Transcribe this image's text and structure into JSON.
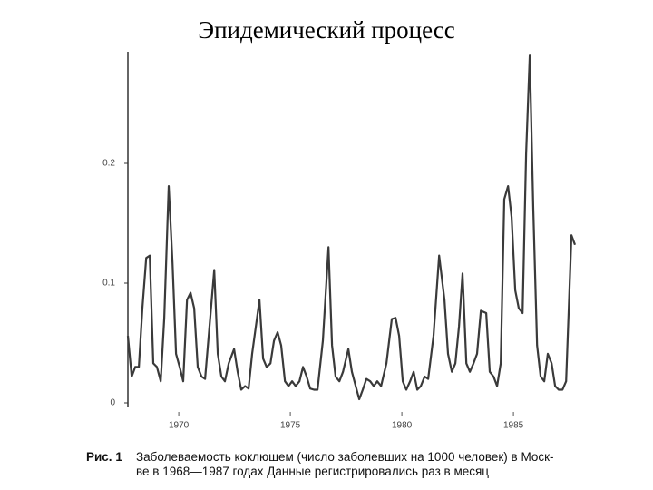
{
  "title": "Эпидемический процесс",
  "chart_data": {
    "type": "line",
    "color": "#3a3a3a",
    "x": [
      1967.72,
      1967.89,
      1968.05,
      1968.21,
      1968.37,
      1968.54,
      1968.7,
      1968.86,
      1969.02,
      1969.19,
      1969.35,
      1969.55,
      1969.72,
      1969.88,
      1970.04,
      1970.2,
      1970.37,
      1970.53,
      1970.69,
      1970.85,
      1971.02,
      1971.18,
      1971.34,
      1971.59,
      1971.75,
      1971.91,
      1972.07,
      1972.24,
      1972.48,
      1972.64,
      1972.8,
      1972.97,
      1973.13,
      1973.29,
      1973.62,
      1973.78,
      1973.94,
      1974.11,
      1974.27,
      1974.43,
      1974.59,
      1974.76,
      1974.92,
      1975.08,
      1975.24,
      1975.41,
      1975.57,
      1975.73,
      1975.89,
      1976.06,
      1976.22,
      1976.46,
      1976.71,
      1976.87,
      1977.03,
      1977.2,
      1977.36,
      1977.6,
      1977.76,
      1977.93,
      1978.09,
      1978.25,
      1978.41,
      1978.58,
      1978.74,
      1978.9,
      1979.07,
      1979.31,
      1979.55,
      1979.72,
      1979.88,
      1980.04,
      1980.2,
      1980.37,
      1980.53,
      1980.69,
      1980.85,
      1981.02,
      1981.18,
      1981.42,
      1981.67,
      1981.91,
      1982.07,
      1982.24,
      1982.4,
      1982.56,
      1982.72,
      1982.89,
      1983.05,
      1983.21,
      1983.37,
      1983.54,
      1983.78,
      1983.94,
      1984.11,
      1984.27,
      1984.43,
      1984.59,
      1984.76,
      1984.92,
      1985.08,
      1985.24,
      1985.41,
      1985.57,
      1985.73,
      1985.89,
      1986.06,
      1986.22,
      1986.38,
      1986.54,
      1986.71,
      1986.87,
      1987.03,
      1987.2,
      1987.36,
      1987.6,
      1987.76
    ],
    "values": [
      0.056,
      0.022,
      0.03,
      0.03,
      0.079,
      0.121,
      0.123,
      0.033,
      0.03,
      0.018,
      0.071,
      0.181,
      0.117,
      0.041,
      0.03,
      0.018,
      0.086,
      0.092,
      0.079,
      0.03,
      0.022,
      0.02,
      0.056,
      0.111,
      0.041,
      0.022,
      0.018,
      0.033,
      0.045,
      0.026,
      0.011,
      0.014,
      0.012,
      0.041,
      0.086,
      0.037,
      0.03,
      0.033,
      0.052,
      0.059,
      0.048,
      0.018,
      0.014,
      0.018,
      0.014,
      0.018,
      0.03,
      0.022,
      0.012,
      0.011,
      0.011,
      0.052,
      0.13,
      0.048,
      0.022,
      0.018,
      0.026,
      0.045,
      0.026,
      0.014,
      0.003,
      0.011,
      0.02,
      0.018,
      0.014,
      0.018,
      0.014,
      0.033,
      0.07,
      0.071,
      0.056,
      0.018,
      0.011,
      0.018,
      0.026,
      0.011,
      0.014,
      0.022,
      0.02,
      0.056,
      0.123,
      0.086,
      0.041,
      0.026,
      0.033,
      0.064,
      0.108,
      0.033,
      0.026,
      0.033,
      0.041,
      0.077,
      0.075,
      0.026,
      0.022,
      0.014,
      0.033,
      0.17,
      0.181,
      0.155,
      0.094,
      0.079,
      0.075,
      0.208,
      0.29,
      0.162,
      0.048,
      0.022,
      0.018,
      0.041,
      0.033,
      0.014,
      0.011,
      0.011,
      0.018,
      0.14,
      0.132
    ],
    "xlim": [
      1967.72,
      1987.76
    ],
    "xticks": [
      1970,
      1975,
      1980,
      1985
    ],
    "ylim": [
      0,
      0.3
    ],
    "yticks": [
      0,
      0.1,
      0.2
    ],
    "caption_label": "Рис. 1",
    "caption_lines": [
      "Заболеваемость коклюшем (число заболевших на 1000 человек) в Моск-",
      "ве в 1968—1987 годах Данные регистрировались раз в месяц"
    ]
  }
}
